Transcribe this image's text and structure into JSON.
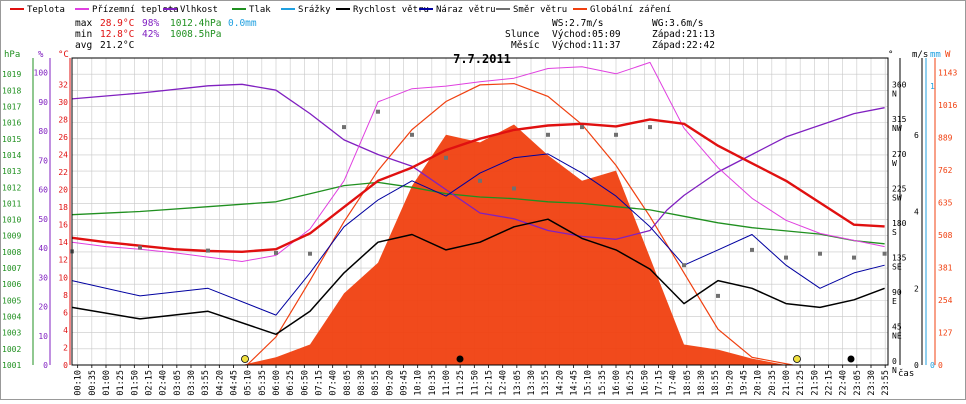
{
  "legend": [
    {
      "label": "Teplota",
      "color": "#e01010"
    },
    {
      "label": "Přízemní teplota",
      "color": "#e040e0"
    },
    {
      "label": "Vlhkost",
      "color": "#8020c0"
    },
    {
      "label": "Tlak",
      "color": "#209020"
    },
    {
      "label": "Srážky",
      "color": "#20a0e0"
    },
    {
      "label": "Rychlost větru",
      "color": "#000000"
    },
    {
      "label": "Náraz větru",
      "color": "#0000a0"
    },
    {
      "label": "Směr větru",
      "color": "#707070"
    },
    {
      "label": "Globální záření",
      "color": "#f04010"
    }
  ],
  "stats": {
    "max": {
      "label": "max",
      "temp": "28.9°C",
      "hum": "98%",
      "press": "1012.4hPa",
      "rain": "0.0mm"
    },
    "min": {
      "label": "min",
      "temp": "12.8°C",
      "hum": "42%",
      "press": "1008.5hPa"
    },
    "avg": {
      "label": "avg",
      "temp": "21.2°C"
    }
  },
  "wind": {
    "ws": "WS:2.7m/s",
    "wg": "WG:3.6m/s"
  },
  "sun": {
    "label": "Slunce",
    "rise": "Východ:05:09",
    "set": "Západ:21:13"
  },
  "moon": {
    "label": "Měsíc",
    "rise": "Východ:11:37",
    "set": "Západ:22:42"
  },
  "colors": {
    "temperature": "#e01010",
    "ground_temp": "#e040e0",
    "humidity": "#8020c0",
    "pressure": "#209020",
    "rain": "#20a0e0",
    "wind_speed": "#000000",
    "wind_gust": "#0000a0",
    "wind_dir": "#707070",
    "radiation": "#f04010",
    "grid": "#c8c8c8"
  },
  "chart_data": {
    "type": "line",
    "title": "7.7.2011",
    "x_axis_label": "čas",
    "x_ticks": [
      "00:10",
      "00:35",
      "01:00",
      "01:25",
      "01:50",
      "02:15",
      "02:40",
      "03:05",
      "03:30",
      "03:55",
      "04:20",
      "04:45",
      "05:10",
      "05:35",
      "06:00",
      "06:25",
      "06:50",
      "07:15",
      "07:40",
      "08:05",
      "08:30",
      "08:55",
      "09:20",
      "09:45",
      "10:10",
      "10:35",
      "11:00",
      "11:25",
      "11:50",
      "12:15",
      "12:40",
      "13:05",
      "13:30",
      "13:55",
      "14:20",
      "14:45",
      "15:10",
      "15:35",
      "16:00",
      "16:25",
      "16:50",
      "17:15",
      "17:40",
      "18:05",
      "18:30",
      "18:55",
      "19:20",
      "19:45",
      "20:10",
      "20:35",
      "21:00",
      "21:25",
      "21:50",
      "22:15",
      "22:40",
      "23:05",
      "23:30",
      "23:55"
    ],
    "axes": {
      "pressure": {
        "unit": "hPa",
        "range": [
          1001,
          1020
        ],
        "ticks": [
          "1001",
          "1002",
          "1003",
          "1004",
          "1005",
          "1006",
          "1007",
          "1008",
          "1009",
          "1010",
          "1011",
          "1012",
          "1013",
          "1014",
          "1015",
          "1016",
          "1017",
          "1018",
          "1019"
        ]
      },
      "humidity": {
        "unit": "%",
        "range": [
          0,
          105
        ],
        "ticks": [
          "0",
          "10",
          "20",
          "30",
          "40",
          "50",
          "60",
          "70",
          "80",
          "90",
          "100"
        ]
      },
      "temperature": {
        "unit": "°C",
        "range": [
          0,
          35
        ],
        "ticks": [
          "0",
          "2",
          "4",
          "6",
          "8",
          "10",
          "12",
          "14",
          "16",
          "18",
          "20",
          "22",
          "24",
          "26",
          "28",
          "30",
          "32"
        ]
      },
      "wind_dir": {
        "unit": "°",
        "ticks": [
          {
            "deg": "0",
            "dir": "N"
          },
          {
            "deg": "45",
            "dir": "NE"
          },
          {
            "deg": "90",
            "dir": "E"
          },
          {
            "deg": "135",
            "dir": "SE"
          },
          {
            "deg": "180",
            "dir": "S"
          },
          {
            "deg": "225",
            "dir": "SW"
          },
          {
            "deg": "270",
            "dir": "W"
          },
          {
            "deg": "315",
            "dir": "NW"
          },
          {
            "deg": "360",
            "dir": "N"
          }
        ]
      },
      "wind_speed": {
        "unit": "m/s",
        "ticks": [
          "0",
          "2",
          "4",
          "6"
        ]
      },
      "rain": {
        "unit": "mm",
        "ticks": [
          "0",
          "1"
        ]
      },
      "radiation": {
        "unit": "W",
        "ticks": [
          "0",
          "127",
          "254",
          "381",
          "508",
          "635",
          "762",
          "889",
          "1016",
          "1143"
        ]
      }
    },
    "series": [
      {
        "name": "Teplota",
        "unit": "°C",
        "points": [
          [
            0,
            14.5
          ],
          [
            1,
            14
          ],
          [
            2,
            13.6
          ],
          [
            3,
            13.2
          ],
          [
            4,
            13.0
          ],
          [
            5,
            12.9
          ],
          [
            6,
            13.2
          ],
          [
            7,
            15
          ],
          [
            8,
            18
          ],
          [
            9,
            21
          ],
          [
            10,
            22.5
          ],
          [
            11,
            24.5
          ],
          [
            12,
            25.8
          ],
          [
            13,
            26.8
          ],
          [
            14,
            27.3
          ],
          [
            15,
            27.5
          ],
          [
            16,
            27.2
          ],
          [
            17,
            28
          ],
          [
            18,
            27.5
          ],
          [
            19,
            25
          ],
          [
            20,
            23
          ],
          [
            21,
            21
          ],
          [
            22,
            18.5
          ],
          [
            23,
            16
          ],
          [
            23.9,
            15.8
          ]
        ]
      },
      {
        "name": "Přízemní teplota",
        "unit": "°C",
        "points": [
          [
            0,
            14
          ],
          [
            1,
            13.5
          ],
          [
            2,
            13.2
          ],
          [
            3,
            12.8
          ],
          [
            4,
            12.3
          ],
          [
            5,
            11.8
          ],
          [
            6,
            12.5
          ],
          [
            7,
            15.5
          ],
          [
            8,
            21
          ],
          [
            9,
            30
          ],
          [
            10,
            31.5
          ],
          [
            11,
            31.8
          ],
          [
            12,
            32.3
          ],
          [
            13,
            32.7
          ],
          [
            14,
            33.8
          ],
          [
            15,
            34
          ],
          [
            16,
            33.2
          ],
          [
            17,
            34.5
          ],
          [
            18,
            27
          ],
          [
            19,
            22.5
          ],
          [
            20,
            19
          ],
          [
            21,
            16.5
          ],
          [
            22,
            15
          ],
          [
            23,
            14.2
          ],
          [
            23.9,
            13.5
          ]
        ]
      },
      {
        "name": "Vlhkost",
        "unit": "%",
        "points": [
          [
            0,
            91
          ],
          [
            2,
            93
          ],
          [
            4,
            95.5
          ],
          [
            5,
            96
          ],
          [
            6,
            94
          ],
          [
            7,
            86
          ],
          [
            8,
            77
          ],
          [
            9,
            72
          ],
          [
            10,
            68
          ],
          [
            11,
            60
          ],
          [
            12,
            52
          ],
          [
            13,
            50
          ],
          [
            14,
            46
          ],
          [
            15,
            44
          ],
          [
            16,
            43
          ],
          [
            17,
            46
          ],
          [
            17.5,
            53
          ],
          [
            18,
            58
          ],
          [
            19,
            66
          ],
          [
            20,
            72
          ],
          [
            21,
            78
          ],
          [
            22,
            82
          ],
          [
            23,
            86
          ],
          [
            23.9,
            88
          ]
        ]
      },
      {
        "name": "Tlak",
        "unit": "hPa",
        "points": [
          [
            0,
            1010.3
          ],
          [
            2,
            1010.5
          ],
          [
            4,
            1010.8
          ],
          [
            6,
            1011.1
          ],
          [
            7,
            1011.6
          ],
          [
            8,
            1012.1
          ],
          [
            9,
            1012.3
          ],
          [
            10,
            1012.0
          ],
          [
            11,
            1011.6
          ],
          [
            12,
            1011.4
          ],
          [
            13,
            1011.3
          ],
          [
            14,
            1011.1
          ],
          [
            15,
            1011.0
          ],
          [
            16,
            1010.8
          ],
          [
            17,
            1010.6
          ],
          [
            18,
            1010.2
          ],
          [
            19,
            1009.8
          ],
          [
            20,
            1009.5
          ],
          [
            21,
            1009.3
          ],
          [
            22,
            1009.1
          ],
          [
            23,
            1008.7
          ],
          [
            23.9,
            1008.5
          ]
        ]
      },
      {
        "name": "Srážky",
        "unit": "mm",
        "points": [
          [
            0,
            0
          ],
          [
            23.9,
            0
          ]
        ]
      },
      {
        "name": "Rychlost větru",
        "unit": "m/s",
        "points": [
          [
            0,
            1.5
          ],
          [
            2,
            1.2
          ],
          [
            4,
            1.4
          ],
          [
            6,
            0.8
          ],
          [
            7,
            1.4
          ],
          [
            8,
            2.4
          ],
          [
            9,
            3.2
          ],
          [
            10,
            3.4
          ],
          [
            11,
            3.0
          ],
          [
            12,
            3.2
          ],
          [
            13,
            3.6
          ],
          [
            14,
            3.8
          ],
          [
            15,
            3.3
          ],
          [
            16,
            3.0
          ],
          [
            17,
            2.5
          ],
          [
            18,
            1.6
          ],
          [
            19,
            2.2
          ],
          [
            20,
            2.0
          ],
          [
            21,
            1.6
          ],
          [
            22,
            1.5
          ],
          [
            23,
            1.7
          ],
          [
            23.9,
            2.0
          ]
        ]
      },
      {
        "name": "Náraz větru",
        "unit": "m/s",
        "points": [
          [
            0,
            2.2
          ],
          [
            2,
            1.8
          ],
          [
            4,
            2.0
          ],
          [
            6,
            1.3
          ],
          [
            7,
            2.4
          ],
          [
            8,
            3.6
          ],
          [
            9,
            4.3
          ],
          [
            10,
            4.8
          ],
          [
            11,
            4.4
          ],
          [
            12,
            5.0
          ],
          [
            13,
            5.4
          ],
          [
            14,
            5.5
          ],
          [
            15,
            5.0
          ],
          [
            16,
            4.4
          ],
          [
            17,
            3.6
          ],
          [
            18,
            2.6
          ],
          [
            19,
            3.0
          ],
          [
            20,
            3.4
          ],
          [
            21,
            2.6
          ],
          [
            22,
            2.0
          ],
          [
            23,
            2.4
          ],
          [
            23.9,
            2.6
          ]
        ]
      },
      {
        "name": "Směr větru",
        "unit": "°",
        "points": [
          [
            0,
            148
          ],
          [
            2,
            153
          ],
          [
            4,
            149
          ],
          [
            6,
            146
          ],
          [
            7,
            145
          ],
          [
            8,
            310
          ],
          [
            9,
            330
          ],
          [
            10,
            300
          ],
          [
            11,
            270
          ],
          [
            12,
            240
          ],
          [
            13,
            230
          ],
          [
            14,
            300
          ],
          [
            15,
            310
          ],
          [
            16,
            300
          ],
          [
            17,
            310
          ],
          [
            18,
            130
          ],
          [
            19,
            90
          ],
          [
            20,
            150
          ],
          [
            21,
            140
          ],
          [
            22,
            145
          ],
          [
            23,
            140
          ],
          [
            23.9,
            145
          ]
        ]
      },
      {
        "name": "Globální záření",
        "unit": "W",
        "points": [
          [
            0,
            0
          ],
          [
            5,
            0
          ],
          [
            6,
            30
          ],
          [
            7,
            80
          ],
          [
            8,
            280
          ],
          [
            9,
            400
          ],
          [
            10,
            700
          ],
          [
            11,
            900
          ],
          [
            12,
            870
          ],
          [
            13,
            940
          ],
          [
            14,
            820
          ],
          [
            15,
            720
          ],
          [
            16,
            760
          ],
          [
            17,
            420
          ],
          [
            18,
            80
          ],
          [
            19,
            60
          ],
          [
            20,
            25
          ],
          [
            21,
            0
          ],
          [
            23.9,
            0
          ]
        ]
      }
    ],
    "theoretical_radiation": {
      "points": [
        [
          5.15,
          0
        ],
        [
          6,
          110
        ],
        [
          7,
          330
        ],
        [
          8,
          560
        ],
        [
          9,
          760
        ],
        [
          10,
          920
        ],
        [
          11,
          1030
        ],
        [
          12,
          1095
        ],
        [
          13,
          1100
        ],
        [
          14,
          1050
        ],
        [
          15,
          940
        ],
        [
          16,
          780
        ],
        [
          17,
          580
        ],
        [
          18,
          360
        ],
        [
          19,
          140
        ],
        [
          20,
          30
        ],
        [
          21.2,
          0
        ]
      ]
    }
  }
}
